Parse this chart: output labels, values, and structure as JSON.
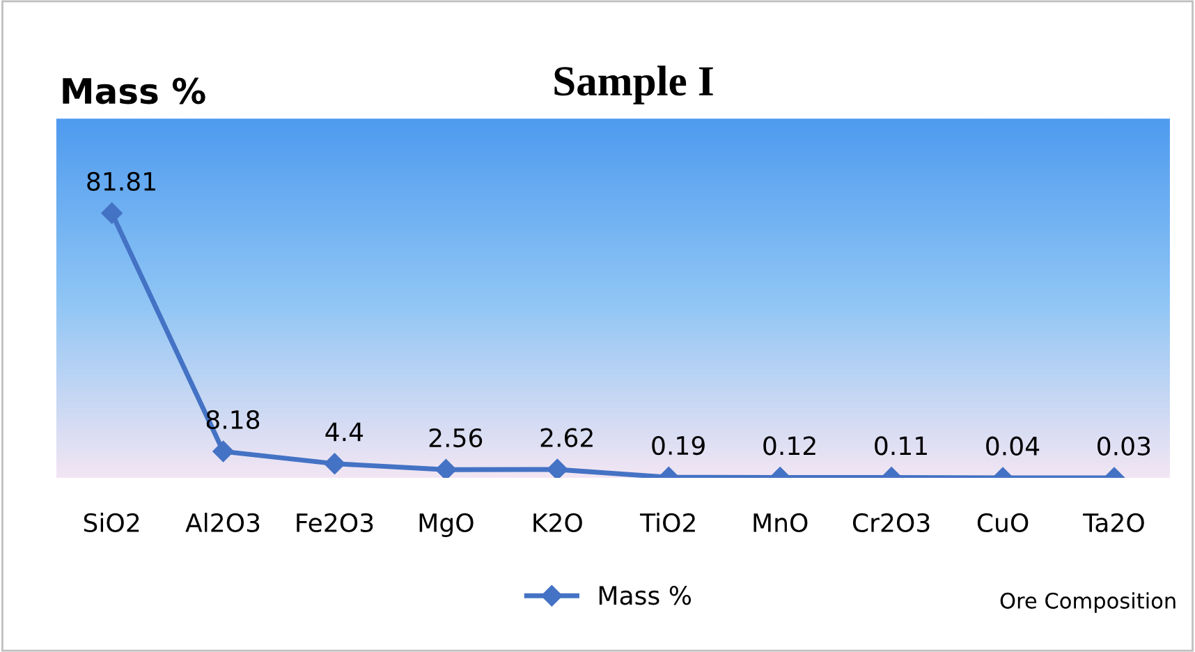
{
  "chart_data": {
    "type": "line",
    "title": "Sample I",
    "ylabel": "Mass %",
    "categories": [
      "SiO2",
      "Al2O3",
      "Fe2O3",
      "MgO",
      "K2O",
      "TiO2",
      "MnO",
      "Cr2O3",
      "CuO",
      "Ta2O"
    ],
    "series": [
      {
        "name": "Mass %",
        "color": "#4472c4",
        "values": [
          81.81,
          8.18,
          4.4,
          2.56,
          2.62,
          0.19,
          0.12,
          0.11,
          0.04,
          0.03
        ]
      }
    ],
    "ylim": [
      0,
      111
    ],
    "data_labels": true,
    "marker": "diamond",
    "line_style": "solid",
    "grid": false,
    "legend": "bottom",
    "annotations": [
      "Ore Composition"
    ]
  }
}
